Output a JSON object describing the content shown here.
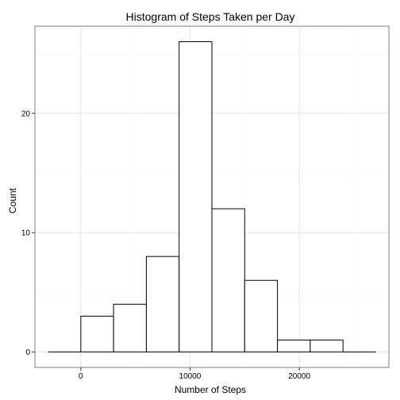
{
  "chart_data": {
    "type": "bar",
    "subtype": "histogram",
    "title": "Histogram of Steps Taken per Day",
    "xlabel": "Number of Steps",
    "ylabel": "Count",
    "bins": [
      {
        "x0": -3000,
        "x1": 0,
        "count": 0
      },
      {
        "x0": 0,
        "x1": 3000,
        "count": 3
      },
      {
        "x0": 3000,
        "x1": 6000,
        "count": 4
      },
      {
        "x0": 6000,
        "x1": 9000,
        "count": 8
      },
      {
        "x0": 9000,
        "x1": 12000,
        "count": 26
      },
      {
        "x0": 12000,
        "x1": 15000,
        "count": 12
      },
      {
        "x0": 15000,
        "x1": 18000,
        "count": 6
      },
      {
        "x0": 18000,
        "x1": 21000,
        "count": 1
      },
      {
        "x0": 21000,
        "x1": 24000,
        "count": 1
      },
      {
        "x0": 24000,
        "x1": 27000,
        "count": 0
      }
    ],
    "xlim": [
      -4200,
      28200
    ],
    "ylim": [
      -1.3,
      27.3
    ],
    "xticks": [
      0,
      10000,
      20000
    ],
    "xtick_labels": [
      "0",
      "10000",
      "20000"
    ],
    "yticks": [
      0,
      10,
      20
    ],
    "ytick_labels": [
      "0",
      "10",
      "20"
    ],
    "grid": true,
    "legend": "none",
    "colors": {
      "bar_fill": "#ffffff",
      "bar_stroke": "#000000",
      "grid_major": "#e5e5e5",
      "grid_minor": "#f4f4f4",
      "panel_border": "#7f7f7f"
    }
  }
}
